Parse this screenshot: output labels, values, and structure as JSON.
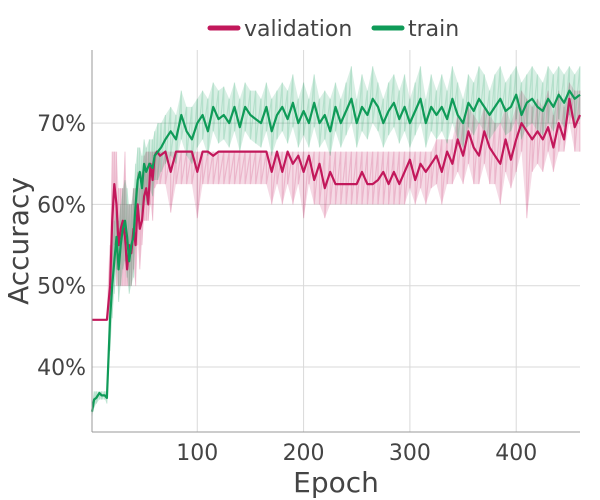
{
  "chart_data": {
    "type": "line",
    "title": "",
    "xlabel": "Epoch",
    "ylabel": "Accuracy",
    "xlim": [
      1,
      460
    ],
    "ylim": [
      0.32,
      0.79
    ],
    "x_ticks": [
      100,
      200,
      300,
      400
    ],
    "x_tick_labels": [
      "100",
      "200",
      "300",
      "400"
    ],
    "y_ticks": [
      0.4,
      0.5,
      0.6,
      0.7
    ],
    "y_tick_labels": [
      "40%",
      "50%",
      "60%",
      "70%"
    ],
    "grid": true,
    "legend_position": "top-center",
    "series": [
      {
        "name": "validation",
        "color": "#c2185b",
        "x": [
          1,
          10,
          15,
          18,
          20,
          22,
          24,
          26,
          28,
          30,
          32,
          34,
          36,
          38,
          40,
          42,
          44,
          46,
          48,
          50,
          52,
          54,
          56,
          58,
          60,
          62,
          65,
          70,
          75,
          80,
          85,
          90,
          95,
          100,
          105,
          110,
          115,
          120,
          125,
          130,
          135,
          140,
          145,
          150,
          155,
          160,
          165,
          170,
          175,
          180,
          185,
          190,
          195,
          200,
          205,
          210,
          215,
          220,
          225,
          230,
          235,
          240,
          245,
          250,
          255,
          260,
          265,
          270,
          275,
          280,
          285,
          290,
          295,
          300,
          305,
          310,
          315,
          320,
          325,
          330,
          335,
          340,
          345,
          350,
          355,
          360,
          365,
          370,
          375,
          380,
          385,
          390,
          395,
          400,
          405,
          410,
          415,
          420,
          425,
          430,
          435,
          440,
          445,
          450,
          455,
          460
        ],
        "y": [
          0.458,
          0.458,
          0.458,
          0.5,
          0.58,
          0.625,
          0.6,
          0.55,
          0.57,
          0.58,
          0.56,
          0.52,
          0.55,
          0.54,
          0.57,
          0.55,
          0.6,
          0.57,
          0.58,
          0.61,
          0.62,
          0.6,
          0.65,
          0.63,
          0.66,
          0.665,
          0.66,
          0.665,
          0.64,
          0.665,
          0.665,
          0.665,
          0.665,
          0.64,
          0.665,
          0.665,
          0.66,
          0.665,
          0.665,
          0.665,
          0.665,
          0.665,
          0.665,
          0.665,
          0.665,
          0.665,
          0.665,
          0.64,
          0.665,
          0.64,
          0.665,
          0.65,
          0.66,
          0.64,
          0.66,
          0.63,
          0.65,
          0.62,
          0.64,
          0.625,
          0.625,
          0.625,
          0.625,
          0.625,
          0.64,
          0.625,
          0.625,
          0.63,
          0.64,
          0.625,
          0.64,
          0.625,
          0.64,
          0.655,
          0.63,
          0.65,
          0.64,
          0.65,
          0.66,
          0.64,
          0.665,
          0.65,
          0.68,
          0.66,
          0.69,
          0.67,
          0.66,
          0.69,
          0.67,
          0.66,
          0.65,
          0.68,
          0.655,
          0.68,
          0.7,
          0.69,
          0.68,
          0.69,
          0.68,
          0.695,
          0.67,
          0.7,
          0.68,
          0.73,
          0.695,
          0.71
        ],
        "noisy_max": [
          0.458,
          0.458,
          0.458,
          0.55,
          0.665,
          0.665,
          0.665,
          0.62,
          0.62,
          0.62,
          0.665,
          0.6,
          0.6,
          0.6,
          0.62,
          0.62,
          0.64,
          0.62,
          0.64,
          0.66,
          0.665,
          0.665,
          0.665,
          0.665,
          0.665,
          0.665,
          0.665,
          0.665,
          0.665,
          0.665,
          0.665,
          0.665,
          0.665,
          0.665,
          0.665,
          0.665,
          0.665,
          0.665,
          0.665,
          0.665,
          0.665,
          0.665,
          0.665,
          0.665,
          0.665,
          0.665,
          0.665,
          0.665,
          0.665,
          0.665,
          0.665,
          0.665,
          0.665,
          0.665,
          0.665,
          0.665,
          0.665,
          0.665,
          0.665,
          0.665,
          0.665,
          0.665,
          0.665,
          0.665,
          0.665,
          0.665,
          0.665,
          0.665,
          0.665,
          0.665,
          0.665,
          0.665,
          0.665,
          0.665,
          0.665,
          0.665,
          0.665,
          0.665,
          0.68,
          0.68,
          0.68,
          0.68,
          0.71,
          0.7,
          0.72,
          0.71,
          0.7,
          0.72,
          0.71,
          0.7,
          0.7,
          0.72,
          0.7,
          0.72,
          0.74,
          0.73,
          0.72,
          0.73,
          0.72,
          0.74,
          0.71,
          0.74,
          0.72,
          0.75,
          0.74,
          0.74
        ],
        "noisy_min": [
          0.458,
          0.458,
          0.458,
          0.458,
          0.5,
          0.55,
          0.5,
          0.5,
          0.5,
          0.5,
          0.5,
          0.5,
          0.5,
          0.5,
          0.52,
          0.5,
          0.55,
          0.52,
          0.55,
          0.58,
          0.58,
          0.58,
          0.6,
          0.58,
          0.62,
          0.625,
          0.625,
          0.625,
          0.59,
          0.625,
          0.625,
          0.625,
          0.625,
          0.583,
          0.625,
          0.625,
          0.625,
          0.625,
          0.625,
          0.625,
          0.625,
          0.625,
          0.625,
          0.625,
          0.625,
          0.625,
          0.625,
          0.6,
          0.625,
          0.6,
          0.625,
          0.6,
          0.625,
          0.583,
          0.625,
          0.6,
          0.6,
          0.583,
          0.6,
          0.6,
          0.6,
          0.6,
          0.6,
          0.6,
          0.6,
          0.6,
          0.6,
          0.6,
          0.6,
          0.6,
          0.6,
          0.6,
          0.6,
          0.62,
          0.6,
          0.62,
          0.6,
          0.62,
          0.625,
          0.6,
          0.625,
          0.625,
          0.64,
          0.625,
          0.65,
          0.625,
          0.625,
          0.65,
          0.625,
          0.625,
          0.6,
          0.64,
          0.62,
          0.64,
          0.665,
          0.583,
          0.64,
          0.65,
          0.64,
          0.665,
          0.64,
          0.665,
          0.665,
          0.7,
          0.665,
          0.665
        ]
      },
      {
        "name": "train",
        "color": "#0f9b58",
        "x": [
          1,
          3,
          5,
          8,
          10,
          13,
          15,
          18,
          20,
          22,
          24,
          26,
          28,
          30,
          32,
          34,
          36,
          38,
          40,
          42,
          44,
          46,
          48,
          50,
          52,
          55,
          58,
          60,
          63,
          66,
          70,
          75,
          80,
          85,
          90,
          95,
          100,
          105,
          110,
          115,
          120,
          125,
          130,
          135,
          140,
          145,
          150,
          155,
          160,
          165,
          170,
          175,
          180,
          185,
          190,
          195,
          200,
          205,
          210,
          215,
          220,
          225,
          230,
          235,
          240,
          245,
          250,
          255,
          260,
          265,
          270,
          275,
          280,
          285,
          290,
          295,
          300,
          305,
          310,
          315,
          320,
          325,
          330,
          335,
          340,
          345,
          350,
          355,
          360,
          365,
          370,
          375,
          380,
          385,
          390,
          395,
          400,
          405,
          410,
          415,
          420,
          425,
          430,
          435,
          440,
          445,
          450,
          455,
          460
        ],
        "y": [
          0.345,
          0.36,
          0.362,
          0.368,
          0.365,
          0.365,
          0.362,
          0.46,
          0.5,
          0.53,
          0.56,
          0.52,
          0.55,
          0.57,
          0.58,
          0.56,
          0.53,
          0.55,
          0.56,
          0.6,
          0.63,
          0.64,
          0.62,
          0.65,
          0.64,
          0.65,
          0.645,
          0.66,
          0.665,
          0.67,
          0.68,
          0.69,
          0.68,
          0.71,
          0.69,
          0.68,
          0.7,
          0.71,
          0.69,
          0.72,
          0.705,
          0.71,
          0.7,
          0.72,
          0.695,
          0.72,
          0.71,
          0.705,
          0.7,
          0.72,
          0.69,
          0.71,
          0.72,
          0.705,
          0.725,
          0.7,
          0.715,
          0.7,
          0.725,
          0.7,
          0.71,
          0.69,
          0.72,
          0.7,
          0.715,
          0.73,
          0.7,
          0.72,
          0.71,
          0.73,
          0.72,
          0.7,
          0.715,
          0.725,
          0.705,
          0.72,
          0.7,
          0.715,
          0.73,
          0.7,
          0.72,
          0.71,
          0.72,
          0.705,
          0.73,
          0.71,
          0.7,
          0.725,
          0.715,
          0.73,
          0.72,
          0.71,
          0.72,
          0.73,
          0.715,
          0.72,
          0.735,
          0.71,
          0.725,
          0.73,
          0.72,
          0.715,
          0.73,
          0.72,
          0.735,
          0.725,
          0.74,
          0.73,
          0.735
        ],
        "noisy_max": [
          0.35,
          0.37,
          0.37,
          0.37,
          0.37,
          0.37,
          0.37,
          0.5,
          0.55,
          0.58,
          0.6,
          0.58,
          0.6,
          0.62,
          0.63,
          0.62,
          0.6,
          0.6,
          0.62,
          0.65,
          0.67,
          0.67,
          0.66,
          0.68,
          0.67,
          0.68,
          0.68,
          0.69,
          0.7,
          0.7,
          0.71,
          0.72,
          0.71,
          0.74,
          0.72,
          0.72,
          0.73,
          0.74,
          0.73,
          0.75,
          0.74,
          0.745,
          0.73,
          0.75,
          0.73,
          0.75,
          0.74,
          0.74,
          0.73,
          0.75,
          0.73,
          0.74,
          0.75,
          0.74,
          0.76,
          0.73,
          0.75,
          0.73,
          0.76,
          0.73,
          0.74,
          0.73,
          0.75,
          0.73,
          0.75,
          0.77,
          0.73,
          0.76,
          0.74,
          0.77,
          0.75,
          0.73,
          0.75,
          0.76,
          0.74,
          0.76,
          0.73,
          0.75,
          0.77,
          0.73,
          0.76,
          0.74,
          0.76,
          0.74,
          0.77,
          0.75,
          0.73,
          0.76,
          0.75,
          0.77,
          0.76,
          0.74,
          0.76,
          0.77,
          0.75,
          0.76,
          0.77,
          0.75,
          0.76,
          0.77,
          0.76,
          0.75,
          0.77,
          0.76,
          0.77,
          0.76,
          0.77,
          0.76,
          0.77
        ],
        "noisy_min": [
          0.34,
          0.35,
          0.355,
          0.36,
          0.36,
          0.36,
          0.355,
          0.42,
          0.46,
          0.49,
          0.52,
          0.48,
          0.5,
          0.52,
          0.53,
          0.51,
          0.49,
          0.5,
          0.51,
          0.55,
          0.59,
          0.6,
          0.58,
          0.61,
          0.6,
          0.62,
          0.61,
          0.63,
          0.63,
          0.64,
          0.65,
          0.66,
          0.65,
          0.68,
          0.66,
          0.65,
          0.67,
          0.68,
          0.66,
          0.69,
          0.675,
          0.68,
          0.67,
          0.69,
          0.665,
          0.69,
          0.68,
          0.675,
          0.67,
          0.69,
          0.66,
          0.68,
          0.69,
          0.675,
          0.695,
          0.67,
          0.685,
          0.67,
          0.695,
          0.67,
          0.68,
          0.66,
          0.69,
          0.67,
          0.685,
          0.7,
          0.67,
          0.69,
          0.68,
          0.7,
          0.69,
          0.67,
          0.685,
          0.695,
          0.675,
          0.69,
          0.67,
          0.685,
          0.7,
          0.67,
          0.69,
          0.68,
          0.69,
          0.675,
          0.7,
          0.68,
          0.67,
          0.695,
          0.685,
          0.7,
          0.69,
          0.68,
          0.69,
          0.7,
          0.685,
          0.69,
          0.705,
          0.68,
          0.695,
          0.7,
          0.69,
          0.685,
          0.7,
          0.69,
          0.705,
          0.695,
          0.71,
          0.7,
          0.705
        ]
      }
    ]
  }
}
